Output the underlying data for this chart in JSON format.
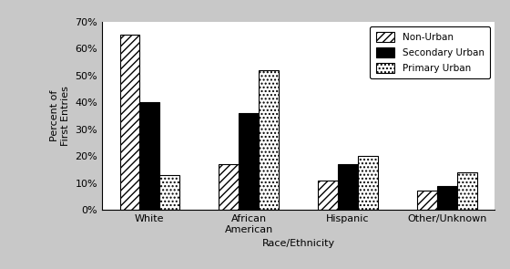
{
  "categories": [
    "White",
    "African\nAmerican",
    "Hispanic",
    "Other/Unknown"
  ],
  "series": {
    "Non-Urban": [
      65,
      17,
      11,
      7
    ],
    "Secondary Urban": [
      40,
      36,
      17,
      9
    ],
    "Primary Urban": [
      13,
      52,
      20,
      14
    ]
  },
  "series_order": [
    "Non-Urban",
    "Secondary Urban",
    "Primary Urban"
  ],
  "xlabel": "Race/Ethnicity",
  "ylabel": "Percent of\nFirst Entries",
  "ylim": [
    0,
    70
  ],
  "yticks": [
    0,
    10,
    20,
    30,
    40,
    50,
    60,
    70
  ],
  "ytick_labels": [
    "0%",
    "10%",
    "20%",
    "30%",
    "40%",
    "50%",
    "60%",
    "70%"
  ],
  "background_color": "#c8c8c8",
  "plot_background": "#ffffff",
  "bar_width": 0.2,
  "legend_labels": [
    "Non-Urban",
    "Secondary Urban",
    "Primary Urban"
  ],
  "legend_hatches": [
    "////",
    "",
    "...."
  ],
  "legend_facecolors": [
    "white",
    "black",
    "white"
  ],
  "hatches": [
    "////",
    "",
    "...."
  ],
  "face_colors": [
    "white",
    "black",
    "white"
  ],
  "edge_colors": [
    "black",
    "black",
    "black"
  ]
}
